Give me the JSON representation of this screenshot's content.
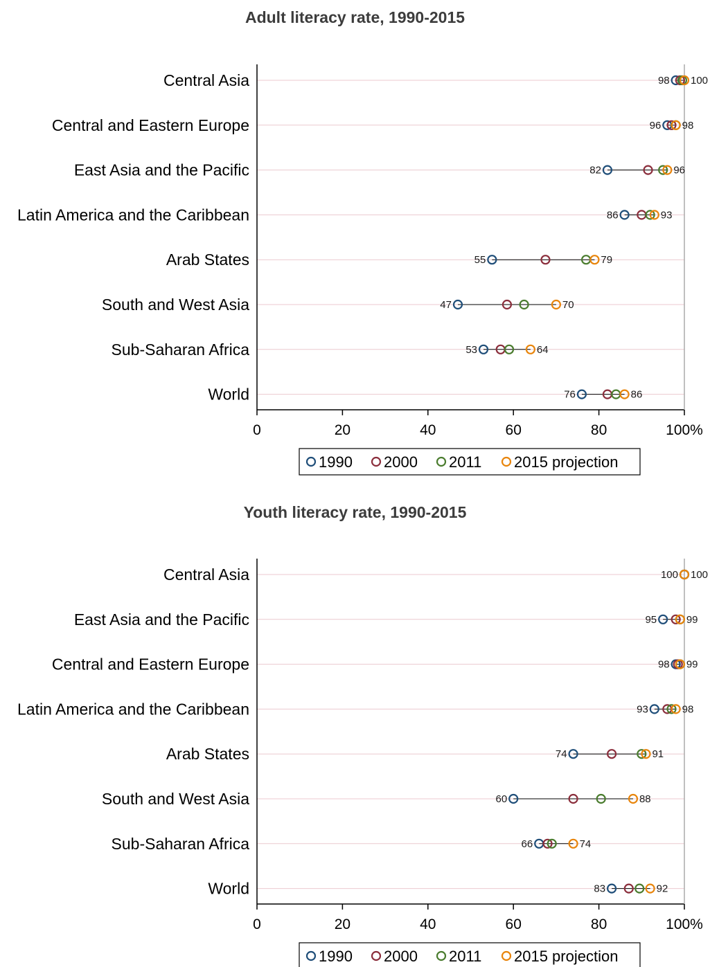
{
  "chart_data": [
    {
      "type": "dot",
      "title": "Adult literacy rate, 1990-2015",
      "xlim": [
        0,
        100
      ],
      "x_ticks": [
        "0",
        "20",
        "40",
        "60",
        "80",
        "100%"
      ],
      "series_names": [
        "1990",
        "2000",
        "2011",
        "2015 projection"
      ],
      "colors": [
        "#1f4e79",
        "#8b2e3c",
        "#4a7c2e",
        "#e8850c"
      ],
      "legend_position": "bottom-center",
      "categories": [
        "Central Asia",
        "Central and Eastern Europe",
        "East Asia and the Pacific",
        "Latin America and the Caribbean",
        "Arab States",
        "South and West Asia",
        "Sub-Saharan Africa",
        "World"
      ],
      "series": [
        {
          "name": "1990",
          "values": [
            98,
            96,
            82,
            86,
            55,
            47,
            53,
            76
          ]
        },
        {
          "name": "2000",
          "values": [
            99,
            97,
            91.5,
            90,
            67.5,
            58.5,
            57,
            82
          ]
        },
        {
          "name": "2011",
          "values": [
            99.5,
            98,
            95,
            92,
            77,
            62.5,
            59,
            84
          ]
        },
        {
          "name": "2015 projection",
          "values": [
            100,
            98,
            96,
            93,
            79,
            70,
            64,
            86
          ]
        }
      ],
      "left_labels": [
        "98",
        "96",
        "82",
        "86",
        "55",
        "47",
        "53",
        "76"
      ],
      "right_labels": [
        "100",
        "98",
        "96",
        "93",
        "79",
        "70",
        "64",
        "86"
      ]
    },
    {
      "type": "dot",
      "title": "Youth literacy rate, 1990-2015",
      "xlim": [
        0,
        100
      ],
      "x_ticks": [
        "0",
        "20",
        "40",
        "60",
        "80",
        "100%"
      ],
      "series_names": [
        "1990",
        "2000",
        "2011",
        "2015 projection"
      ],
      "colors": [
        "#1f4e79",
        "#8b2e3c",
        "#4a7c2e",
        "#e8850c"
      ],
      "legend_position": "bottom-center",
      "categories": [
        "Central Asia",
        "East Asia and the Pacific",
        "Central and Eastern Europe",
        "Latin America and the Caribbean",
        "Arab States",
        "South and West Asia",
        "Sub-Saharan Africa",
        "World"
      ],
      "series": [
        {
          "name": "1990",
          "values": [
            100,
            95,
            98,
            93,
            74,
            60,
            66,
            83
          ]
        },
        {
          "name": "2000",
          "values": [
            100,
            98,
            98.5,
            96,
            83,
            74,
            68,
            87
          ]
        },
        {
          "name": "2011",
          "values": [
            100,
            99,
            99,
            97,
            90,
            80.5,
            69,
            89.5
          ]
        },
        {
          "name": "2015 projection",
          "values": [
            100,
            99,
            99,
            98,
            91,
            88,
            74,
            92
          ]
        }
      ],
      "left_labels": [
        "100",
        "95",
        "98",
        "93",
        "74",
        "60",
        "66",
        "83"
      ],
      "right_labels": [
        "100",
        "99",
        "99",
        "98",
        "91",
        "88",
        "74",
        "92"
      ]
    }
  ]
}
